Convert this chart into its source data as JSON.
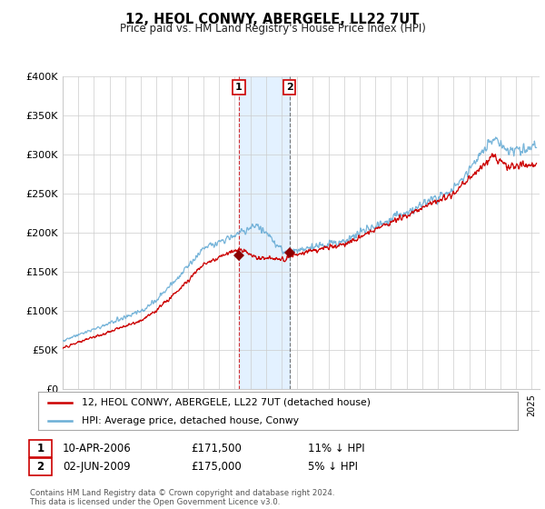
{
  "title": "12, HEOL CONWY, ABERGELE, LL22 7UT",
  "subtitle": "Price paid vs. HM Land Registry's House Price Index (HPI)",
  "ylabel_ticks": [
    "£0",
    "£50K",
    "£100K",
    "£150K",
    "£200K",
    "£250K",
    "£300K",
    "£350K",
    "£400K"
  ],
  "ylim": [
    0,
    400000
  ],
  "xlim_start": 1995.0,
  "xlim_end": 2025.5,
  "legend_line1": "12, HEOL CONWY, ABERGELE, LL22 7UT (detached house)",
  "legend_line2": "HPI: Average price, detached house, Conwy",
  "sale1_date": "10-APR-2006",
  "sale1_price": "£171,500",
  "sale1_hpi": "11% ↓ HPI",
  "sale2_date": "02-JUN-2009",
  "sale2_price": "£175,000",
  "sale2_hpi": "5% ↓ HPI",
  "footer": "Contains HM Land Registry data © Crown copyright and database right 2024.\nThis data is licensed under the Open Government Licence v3.0.",
  "hpi_color": "#6baed6",
  "price_color": "#cc0000",
  "shading_color": "#ddeeff",
  "sale1_x": 2006.27,
  "sale2_x": 2009.5,
  "background_color": "#ffffff",
  "grid_color": "#cccccc"
}
